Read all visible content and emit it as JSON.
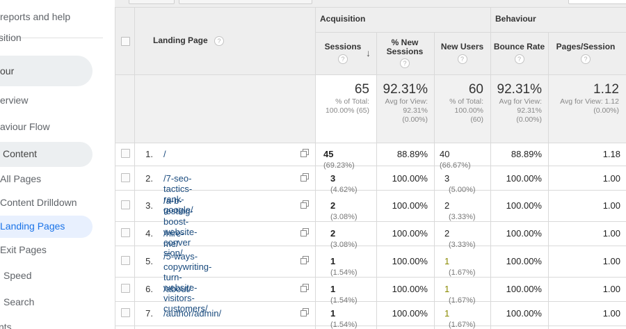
{
  "sidebar": {
    "items": [
      {
        "label": "reports and help"
      },
      {
        "label": "sition"
      },
      {
        "label": "our"
      },
      {
        "label": "erview"
      },
      {
        "label": "aviour Flow"
      },
      {
        "label": "Content"
      },
      {
        "label": "All Pages"
      },
      {
        "label": "Content Drilldown"
      },
      {
        "label": "Landing Pages"
      },
      {
        "label": "Exit Pages"
      },
      {
        "label": "Speed"
      },
      {
        "label": "Search"
      },
      {
        "label": "nts"
      }
    ]
  },
  "table": {
    "group_acquisition": "Acquisition",
    "group_behaviour": "Behaviour",
    "col_landing_page": "Landing Page",
    "col_sessions": "Sessions",
    "col_new_sessions": "% New Sessions",
    "col_new_users": "New Users",
    "col_bounce": "Bounce Rate",
    "col_pages_session": "Pages/Session",
    "help_glyph": "?",
    "sort_arrow": "↓",
    "totals": {
      "sessions": "65",
      "sessions_sub1": "% of Total:",
      "sessions_sub2": "100.00% (65)",
      "new_sessions": "92.31%",
      "new_sessions_sub1": "Avg for View:",
      "new_sessions_sub2": "92.31%",
      "new_sessions_sub3": "(0.00%)",
      "new_users": "60",
      "new_users_sub1": "% of Total:",
      "new_users_sub2": "100.00%",
      "new_users_sub3": "(60)",
      "bounce": "92.31%",
      "bounce_sub1": "Avg for View:",
      "bounce_sub2": "92.31%",
      "bounce_sub3": "(0.00%)",
      "pages": "1.12",
      "pages_sub1": "Avg for View: 1.12",
      "pages_sub2": "(0.00%)"
    },
    "rows": [
      {
        "n": "1.",
        "page1": "/",
        "page2": "",
        "sessions": "45",
        "sessions_pct": "(69.23%)",
        "new_sessions": "88.89%",
        "new_users": "40",
        "new_users_pct": "(66.67%)",
        "bounce": "88.89%",
        "pages": "1.18"
      },
      {
        "n": "2.",
        "page1": "/7-seo-tactics-rank-google/",
        "page2": "",
        "sessions": "3",
        "sessions_pct": "(4.62%)",
        "new_sessions": "100.00%",
        "new_users": "3",
        "new_users_pct": "(5.00%)",
        "bounce": "100.00%",
        "pages": "1.00"
      },
      {
        "n": "3.",
        "page1": "/a-b-testing-boost-website-conver",
        "page2": "sion/",
        "sessions": "2",
        "sessions_pct": "(3.08%)",
        "new_sessions": "100.00%",
        "new_users": "2",
        "new_users_pct": "(3.33%)",
        "bounce": "100.00%",
        "pages": "1.00"
      },
      {
        "n": "4.",
        "page1": "/hire-me/",
        "page2": "",
        "sessions": "2",
        "sessions_pct": "(3.08%)",
        "new_sessions": "100.00%",
        "new_users": "2",
        "new_users_pct": "(3.33%)",
        "bounce": "100.00%",
        "pages": "1.00"
      },
      {
        "n": "5.",
        "page1": "/5-ways-copywriting-turn-website-",
        "page2": "visitors-customers/",
        "sessions": "1",
        "sessions_pct": "(1.54%)",
        "new_sessions": "100.00%",
        "new_users": "1",
        "new_users_pct": "(1.67%)",
        "bounce": "100.00%",
        "pages": "1.00"
      },
      {
        "n": "6.",
        "page1": "/about/",
        "page2": "",
        "sessions": "1",
        "sessions_pct": "(1.54%)",
        "new_sessions": "100.00%",
        "new_users": "1",
        "new_users_pct": "(1.67%)",
        "bounce": "100.00%",
        "pages": "1.00"
      },
      {
        "n": "7.",
        "page1": "/author/admin/",
        "page2": "",
        "sessions": "1",
        "sessions_pct": "(1.54%)",
        "new_sessions": "100.00%",
        "new_users": "1",
        "new_users_pct": "(1.67%)",
        "bounce": "100.00%",
        "pages": "1.00"
      }
    ]
  },
  "colors": {
    "link": "#1a4b7e",
    "active_nav": "#1a73e8",
    "new_users_value_green": "#8a8a00"
  }
}
